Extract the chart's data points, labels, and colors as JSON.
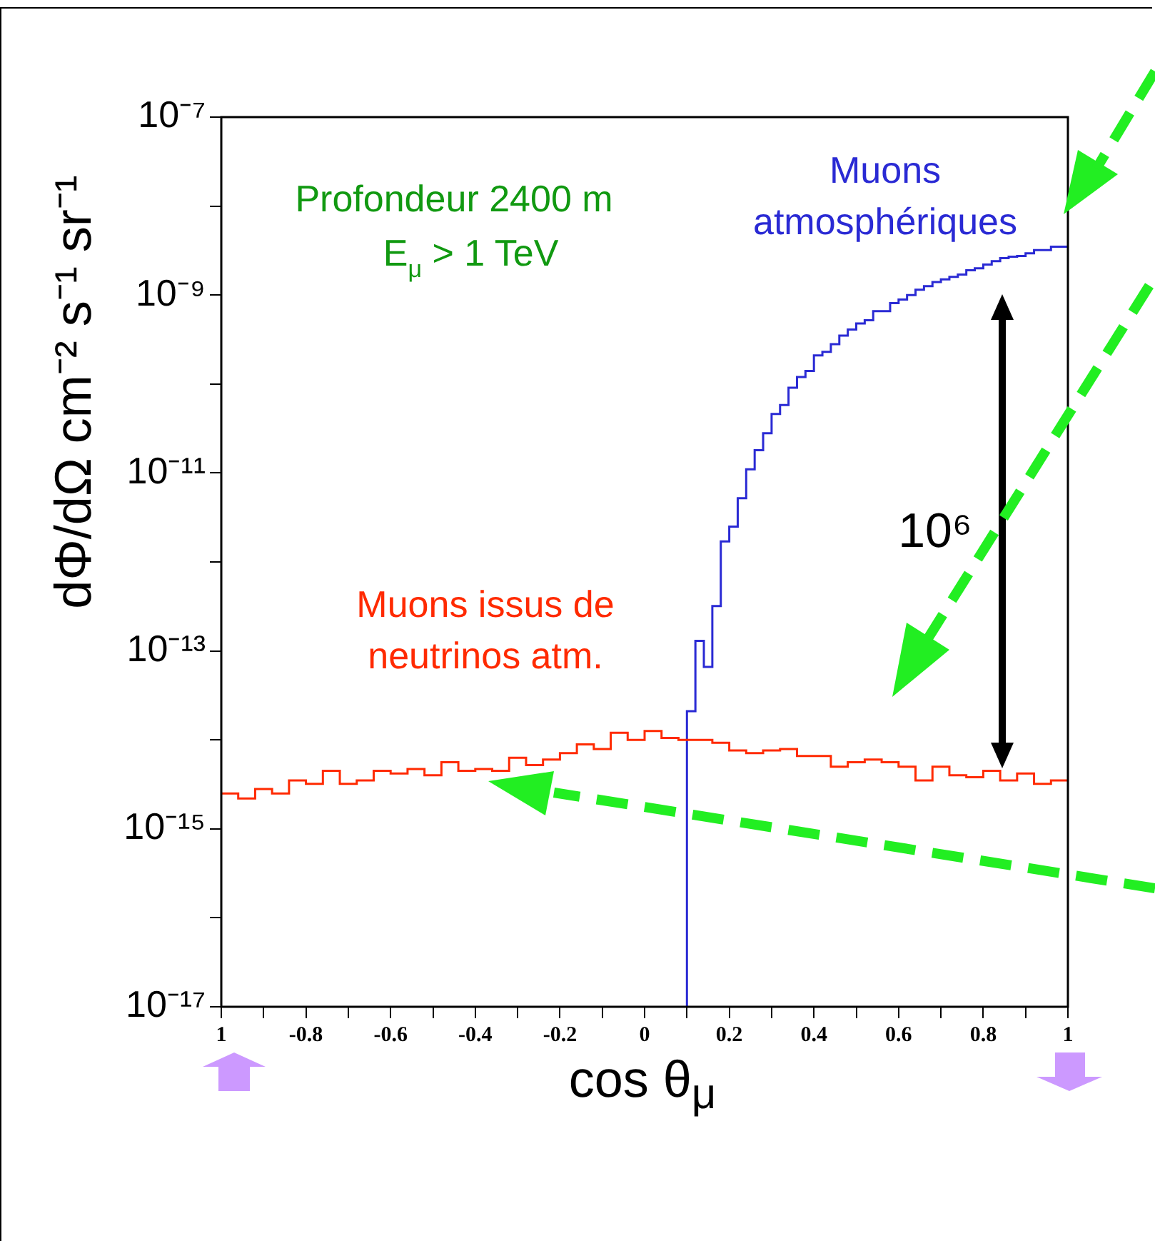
{
  "chart_data": {
    "type": "step",
    "xlabel": "cos θ$_{μ}$",
    "ylabel": "dΦ/dΩ cm⁻² s⁻¹ sr⁻¹",
    "log": "y",
    "grid": false,
    "legend": false,
    "xlim": [
      -1,
      1
    ],
    "ylim": [
      1e-17,
      1e-07
    ],
    "xticks": [
      {
        "value": -1,
        "label": "1"
      },
      {
        "value": -0.9,
        "label": null
      },
      {
        "value": -0.8,
        "label": "-0.8"
      },
      {
        "value": -0.7,
        "label": null
      },
      {
        "value": -0.6,
        "label": "-0.6"
      },
      {
        "value": -0.5,
        "label": null
      },
      {
        "value": -0.4,
        "label": "-0.4"
      },
      {
        "value": -0.3,
        "label": null
      },
      {
        "value": -0.2,
        "label": "-0.2"
      },
      {
        "value": -0.1,
        "label": null
      },
      0,
      {
        "value": 0.1,
        "label": null
      },
      0.2,
      {
        "value": 0.3,
        "label": null
      },
      0.4,
      {
        "value": 0.5,
        "label": null
      },
      0.6,
      {
        "value": 0.7,
        "label": null
      },
      0.8,
      {
        "value": 0.9,
        "label": null
      },
      1
    ],
    "yticks": [
      {
        "value": 1e-17,
        "label": "10⁻¹⁷"
      },
      {
        "value": 1e-16,
        "label": null
      },
      {
        "value": 1e-15,
        "label": "10⁻¹⁵"
      },
      {
        "value": 1e-14,
        "label": null
      },
      {
        "value": 1e-13,
        "label": "10⁻¹³"
      },
      {
        "value": 1e-12,
        "label": null
      },
      {
        "value": 1e-11,
        "label": "10⁻¹¹"
      },
      {
        "value": 1e-10,
        "label": null
      },
      {
        "value": 1e-09,
        "label": "10⁻⁹"
      },
      {
        "value": 1e-08,
        "label": null
      },
      {
        "value": 1e-07,
        "label": "10⁻⁷"
      }
    ],
    "series": [
      {
        "name": "Muons issus de neutrinos atm.",
        "color": "#ff2a00",
        "x": [
          -1,
          -0.96,
          -0.92,
          -0.88,
          -0.84,
          -0.8,
          -0.76,
          -0.72,
          -0.68,
          -0.64,
          -0.6,
          -0.56,
          -0.52,
          -0.48,
          -0.44,
          -0.4,
          -0.36,
          -0.32,
          -0.28,
          -0.24,
          -0.2,
          -0.16,
          -0.12,
          -0.08,
          -0.04,
          0,
          0.04,
          0.08,
          0.12,
          0.16,
          0.2,
          0.24,
          0.28,
          0.32,
          0.36,
          0.4,
          0.44,
          0.48,
          0.52,
          0.56,
          0.6,
          0.64,
          0.68,
          0.72,
          0.76,
          0.8,
          0.84,
          0.88,
          0.92,
          0.96,
          1
        ],
        "values": [
          2.5e-15,
          2.2e-15,
          2.8e-15,
          2.5e-15,
          3.5e-15,
          3.2e-15,
          4.5e-15,
          3.2e-15,
          3.5e-15,
          4.5e-15,
          4.2e-15,
          4.7e-15,
          4e-15,
          5.6e-15,
          4.5e-15,
          4.7e-15,
          4.5e-15,
          6.3e-15,
          5.2e-15,
          6e-15,
          7.1e-15,
          8.9e-15,
          7.9e-15,
          1.2e-14,
          1e-14,
          1.26e-14,
          1.05e-14,
          1e-14,
          1e-14,
          9.3e-15,
          7.6e-15,
          7.1e-15,
          7.6e-15,
          7.9e-15,
          6.6e-15,
          6.6e-15,
          5e-15,
          5.6e-15,
          6e-15,
          5.6e-15,
          5e-15,
          3.5e-15,
          5e-15,
          4e-15,
          3.8e-15,
          4.5e-15,
          3.5e-15,
          4.2e-15,
          3.2e-15,
          3.5e-15,
          3.5e-15
        ]
      },
      {
        "name": "Muons atmosphériques",
        "color": "#2a2ad4",
        "x": [
          0.1,
          0.1,
          0.12,
          0.14,
          0.16,
          0.18,
          0.2,
          0.22,
          0.24,
          0.26,
          0.28,
          0.3,
          0.32,
          0.34,
          0.36,
          0.38,
          0.4,
          0.42,
          0.44,
          0.46,
          0.48,
          0.5,
          0.52,
          0.54,
          0.56,
          0.58,
          0.6,
          0.62,
          0.64,
          0.66,
          0.68,
          0.7,
          0.72,
          0.74,
          0.76,
          0.78,
          0.8,
          0.82,
          0.84,
          0.86,
          0.88,
          0.9,
          0.92,
          0.94,
          0.96,
          0.98,
          1
        ],
        "values": [
          1e-17,
          2.1e-14,
          1.3e-13,
          6.6e-14,
          3.2e-13,
          1.7e-12,
          2.5e-12,
          5.2e-12,
          1.1e-11,
          1.8e-11,
          2.8e-11,
          4.6e-11,
          5.8e-11,
          9.1e-11,
          1.2e-10,
          1.4e-10,
          2.1e-10,
          2.3e-10,
          2.8e-10,
          3.5e-10,
          4.1e-10,
          4.8e-10,
          5.2e-10,
          6.6e-10,
          6.6e-10,
          8.1e-10,
          8.9e-10,
          1e-09,
          1.15e-09,
          1.26e-09,
          1.4e-09,
          1.5e-09,
          1.6e-09,
          1.7e-09,
          1.9e-09,
          2e-09,
          2.2e-09,
          2.4e-09,
          2.6e-09,
          2.7e-09,
          2.75e-09,
          2.95e-09,
          3.2e-09,
          3.2e-09,
          3.5e-09,
          3.5e-09,
          3.5e-09
        ]
      }
    ],
    "annotations": [
      "Profondeur 2400 m",
      "E$_{μ}$ > 1 TeV",
      "10⁶"
    ]
  }
}
